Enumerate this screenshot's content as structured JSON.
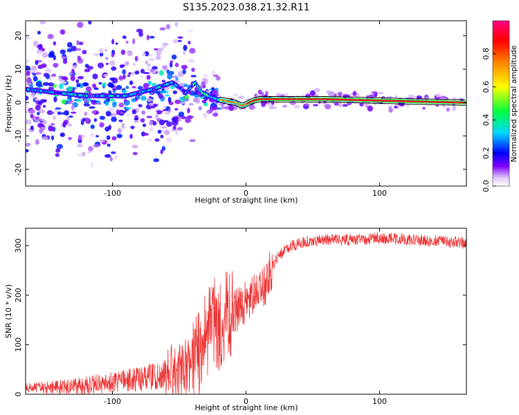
{
  "title": "S135.2023.038.21.32.R11",
  "chart_data": [
    {
      "type": "heatmap",
      "name": "spectrogram",
      "xlabel": "Height of straight line (km)",
      "ylabel": "Frequency (Hz)",
      "xlim": [
        -165,
        165
      ],
      "ylim": [
        -25,
        24.5
      ],
      "xticks": [
        -100,
        0,
        100
      ],
      "xtick_labels": [
        "-100",
        "0",
        "100"
      ],
      "yticks": [
        -20,
        -10,
        0,
        10,
        20
      ],
      "ytick_labels": [
        "-20",
        "-10",
        "0",
        "10",
        "20"
      ],
      "ridge": {
        "x": [
          -165,
          -120,
          -90,
          -70,
          -55,
          -45,
          -38,
          -33,
          -28,
          -22,
          -15,
          -8,
          -3,
          0,
          5,
          10,
          20,
          40,
          60,
          80,
          100,
          120,
          140,
          165
        ],
        "frequency": [
          4,
          2,
          2,
          4,
          6,
          3,
          6,
          3,
          2,
          1,
          0.5,
          0,
          -1,
          -0.5,
          0.5,
          1,
          1,
          1,
          1,
          0.8,
          0.6,
          0.4,
          0.2,
          0
        ]
      },
      "colorbar": {
        "label": "Normalized spectral amplitude",
        "range": [
          0,
          1
        ],
        "ticks": [
          0.0,
          0.2,
          0.4,
          0.6,
          0.8
        ],
        "tick_labels": [
          "0.0",
          "0.2",
          "0.4",
          "0.6",
          "0.8"
        ],
        "colormap": [
          "#e8d8f6",
          "#8000ff",
          "#0000ff",
          "#00ffff",
          "#00ff00",
          "#ffff00",
          "#ff8000",
          "#ff0000",
          "#ff0080"
        ]
      },
      "grid": false
    },
    {
      "type": "line",
      "name": "snr",
      "xlabel": "Height of straight line (km)",
      "ylabel": "SNR (10 * v/v)",
      "xlim": [
        -165,
        165
      ],
      "ylim": [
        0,
        335
      ],
      "xticks": [
        -100,
        0,
        100
      ],
      "xtick_labels": [
        "-100",
        "0",
        "100"
      ],
      "yticks": [
        0,
        100,
        200,
        300
      ],
      "ytick_labels": [
        "0",
        "100",
        "200",
        "300"
      ],
      "series": [
        {
          "color": "#ee3333",
          "x": [
            -165,
            -140,
            -120,
            -100,
            -80,
            -60,
            -50,
            -40,
            -35,
            -30,
            -25,
            -20,
            -15,
            -10,
            -5,
            0,
            5,
            10,
            15,
            20,
            25,
            30,
            40,
            50,
            60,
            80,
            100,
            120,
            140,
            165
          ],
          "y": [
            12,
            14,
            18,
            24,
            30,
            40,
            45,
            60,
            80,
            120,
            150,
            135,
            160,
            165,
            175,
            190,
            200,
            210,
            225,
            260,
            280,
            295,
            305,
            310,
            312,
            312,
            315,
            312,
            310,
            305
          ]
        }
      ],
      "grid": false
    }
  ]
}
